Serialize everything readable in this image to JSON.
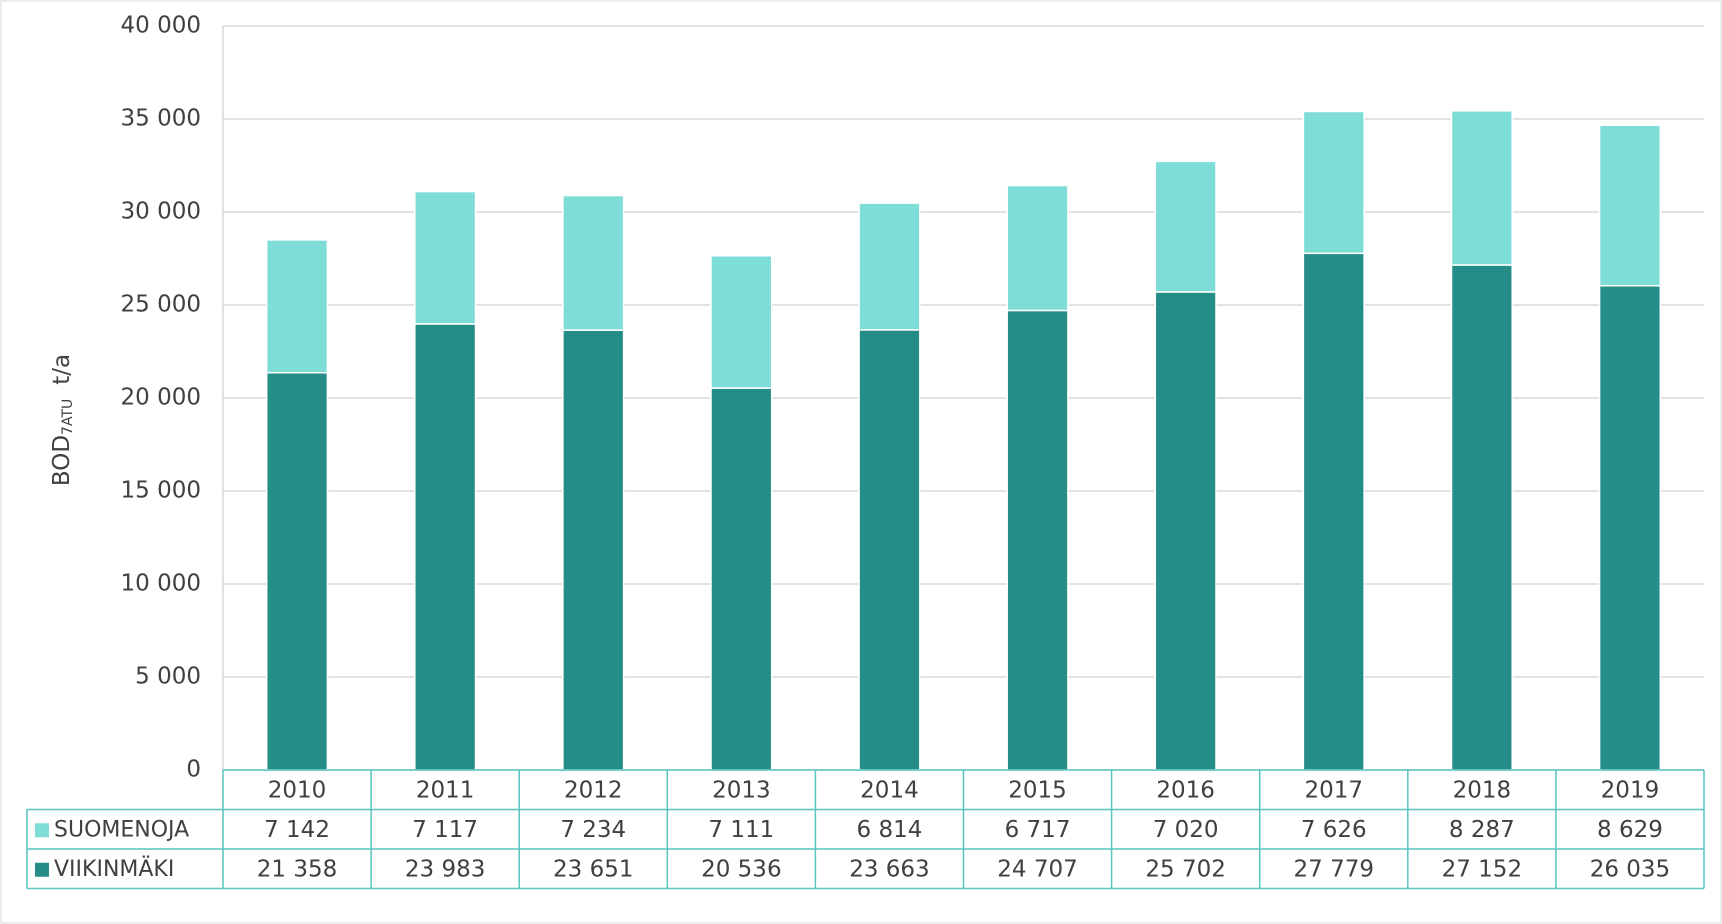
{
  "chart_data": {
    "type": "stacked_bar",
    "y_label": {
      "main": "BOD",
      "sub": "7ATU",
      "unit": "t/a"
    },
    "categories": [
      "2010",
      "2011",
      "2012",
      "2013",
      "2014",
      "2015",
      "2016",
      "2017",
      "2018",
      "2019"
    ],
    "series": [
      {
        "name": "SUOMENOJA",
        "color": "#7fddd8",
        "values": [
          7142,
          7117,
          7234,
          7111,
          6814,
          6717,
          7020,
          7626,
          8287,
          8629
        ],
        "value_labels": [
          "7 142",
          "7 117",
          "7 234",
          "7 111",
          "6 814",
          "6 717",
          "7 020",
          "7 626",
          "8 287",
          "8 629"
        ]
      },
      {
        "name": "VIIKINMÄKI",
        "color": "#258d87",
        "values": [
          21358,
          23983,
          23651,
          20536,
          23663,
          24707,
          25702,
          27779,
          27152,
          26035
        ],
        "value_labels": [
          "21 358",
          "23 983",
          "23 651",
          "20 536",
          "23 663",
          "24 707",
          "25 702",
          "27 779",
          "27 152",
          "26 035"
        ]
      }
    ],
    "ylim": [
      0,
      40000
    ],
    "yticks": [
      0,
      {
        "value": 5000,
        "label": "5 000"
      },
      {
        "value": 10000,
        "label": "10 000"
      },
      {
        "value": 15000,
        "label": "15 000"
      },
      {
        "value": 20000,
        "label": "20 000"
      },
      {
        "value": 25000,
        "label": "25 000"
      },
      {
        "value": 30000,
        "label": "30 000"
      },
      {
        "value": 35000,
        "label": "35 000"
      },
      {
        "value": 40000,
        "label": "40 000"
      }
    ],
    "grid": true
  }
}
